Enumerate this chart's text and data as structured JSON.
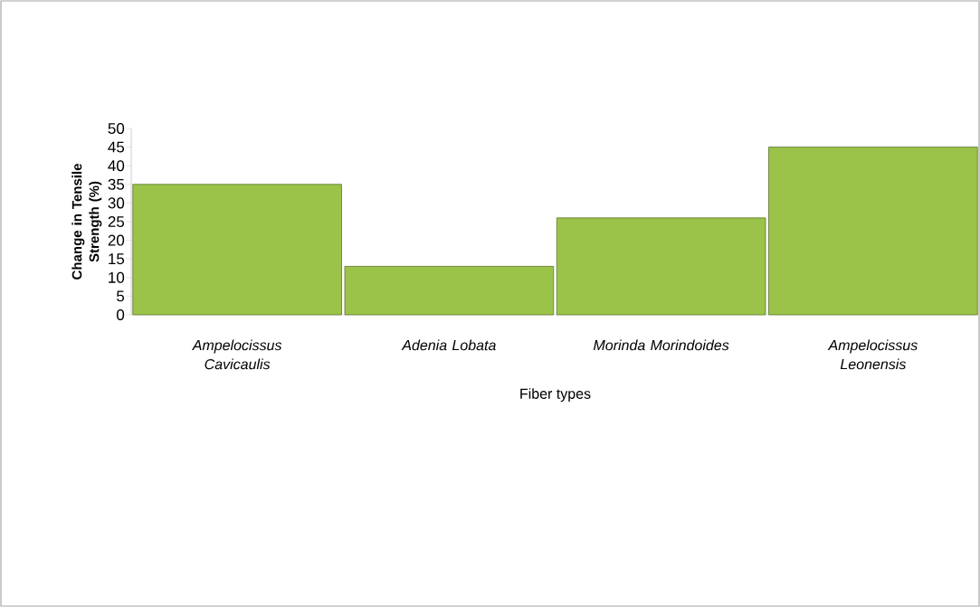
{
  "chart_data": {
    "type": "bar",
    "categories": [
      "Ampelocissus Cavicaulis",
      "Adenia Lobata",
      "Morinda Morindoides",
      "Ampelocissus Leonensis"
    ],
    "values": [
      35,
      13,
      26,
      45
    ],
    "color": "#9bc34a",
    "xlabel": "Fiber types",
    "ylabel": "Change in Tensile Strength (%)",
    "ylim": [
      0,
      50
    ],
    "yticks": [
      0,
      5,
      10,
      15,
      20,
      25,
      30,
      35,
      40,
      45,
      50
    ]
  }
}
